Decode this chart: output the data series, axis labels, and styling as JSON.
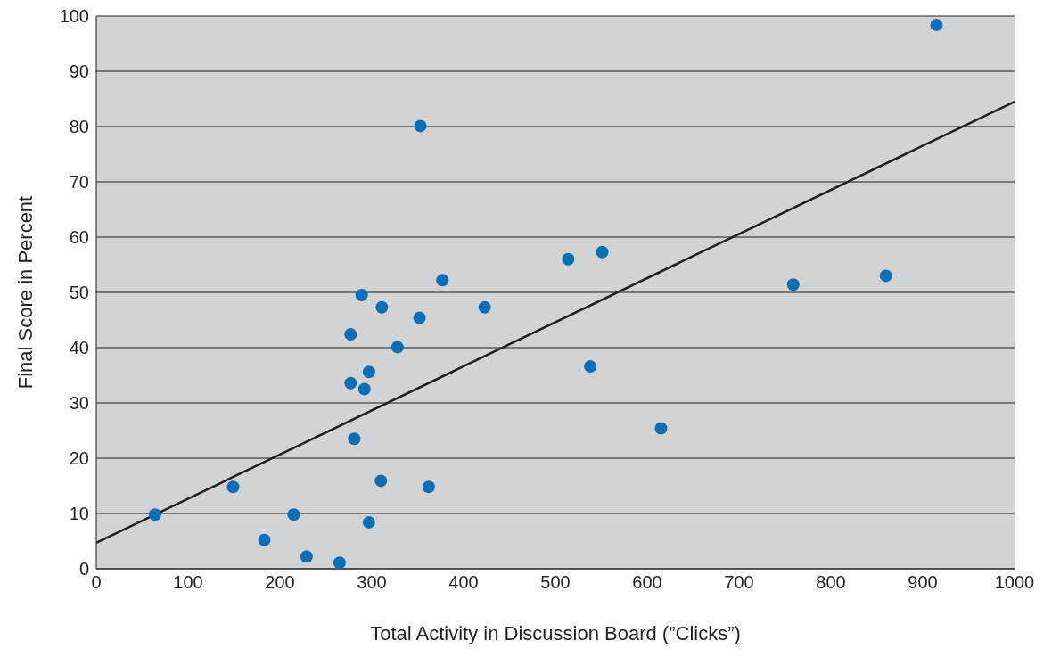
{
  "chart_data": {
    "type": "scatter",
    "xlabel": "Total Activity in Discussion Board (”Clicks”)",
    "ylabel": "Final Score in Percent",
    "xlim": [
      0,
      1000
    ],
    "xticks": [
      0,
      100,
      200,
      300,
      400,
      500,
      600,
      700,
      800,
      900,
      1000
    ],
    "ylim": [
      0,
      100
    ],
    "yticks": [
      0,
      10,
      20,
      30,
      40,
      50,
      60,
      70,
      80,
      90,
      100
    ],
    "grid": "y",
    "series": [
      {
        "marker": "circle",
        "color": "#0d6eb5",
        "x": [
          64,
          149,
          183,
          215,
          229,
          265,
          277,
          277,
          281,
          289,
          292,
          297,
          297,
          311,
          310,
          328,
          352,
          353,
          362,
          377,
          423,
          514,
          538,
          551,
          615,
          759,
          860,
          915
        ],
        "values": [
          9.8,
          14.8,
          5.2,
          9.8,
          2.2,
          1.1,
          42.4,
          33.6,
          23.5,
          49.5,
          32.5,
          35.6,
          8.4,
          47.3,
          15.9,
          40.1,
          45.4,
          80.1,
          14.8,
          52.2,
          47.3,
          56.0,
          36.6,
          57.3,
          25.4,
          51.4,
          53.0,
          98.4
        ]
      },
      {
        "type": "line",
        "color": "#231f20",
        "x": [
          0,
          1000
        ],
        "values": [
          4.7,
          84.5
        ]
      }
    ]
  }
}
